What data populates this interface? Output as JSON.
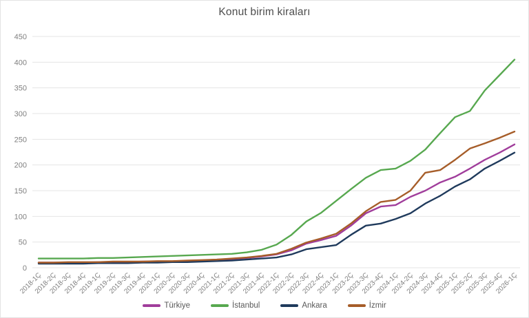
{
  "chart_data": {
    "type": "line",
    "title": "Konut birim kiraları",
    "xlabel": "",
    "ylabel": "",
    "ylim": [
      0,
      450
    ],
    "yticks": [
      0,
      50,
      100,
      150,
      200,
      250,
      300,
      350,
      400,
      450
    ],
    "grid": "horizontal",
    "legend_position": "bottom",
    "categories": [
      "2018-1Ç",
      "2018-2Ç",
      "2018-3Ç",
      "2018-4Ç",
      "2019-1Ç",
      "2019-2Ç",
      "2019-3Ç",
      "2019-4Ç",
      "2020-1Ç",
      "2020-2Ç",
      "2020-3Ç",
      "2020-4Ç",
      "2021-1Ç",
      "2021-2Ç",
      "2021-3Ç",
      "2021-4Ç",
      "2022-1Ç",
      "2022-2Ç",
      "2022-3Ç",
      "2022-4Ç",
      "2023-1Ç",
      "2023-2Ç",
      "2023-3Ç",
      "2023-4Ç",
      "2024-1Ç",
      "2024-2Ç",
      "2024-3Ç",
      "2024-4Ç",
      "2025-1Ç",
      "2025-2Ç",
      "2025-3Ç",
      "2025-4Ç",
      "2026-1Ç"
    ],
    "series": [
      {
        "name": "Türkiye",
        "color": "#A03D9B",
        "values": [
          10,
          10,
          10,
          10,
          11,
          11,
          11,
          12,
          12,
          12,
          13,
          14,
          16,
          17,
          19,
          22,
          26,
          34,
          47,
          54,
          62,
          82,
          106,
          119,
          122,
          138,
          150,
          166,
          177,
          193,
          210,
          224,
          240
        ]
      },
      {
        "name": "İstanbul",
        "color": "#57A84F",
        "values": [
          18,
          18,
          18,
          18,
          19,
          19,
          20,
          21,
          22,
          23,
          24,
          25,
          26,
          27,
          30,
          35,
          45,
          64,
          90,
          107,
          130,
          153,
          175,
          190,
          193,
          208,
          230,
          262,
          293,
          305,
          345,
          375,
          405
        ]
      },
      {
        "name": "Ankara",
        "color": "#1F3A5C",
        "values": [
          8,
          8,
          8,
          8,
          9,
          9,
          9,
          10,
          10,
          11,
          11,
          12,
          13,
          14,
          16,
          18,
          20,
          26,
          36,
          40,
          44,
          64,
          82,
          86,
          95,
          106,
          125,
          140,
          158,
          172,
          193,
          208,
          224
        ]
      },
      {
        "name": "İzmir",
        "color": "#A65D29",
        "values": [
          10,
          10,
          11,
          11,
          11,
          12,
          12,
          12,
          13,
          13,
          14,
          15,
          16,
          18,
          20,
          23,
          27,
          37,
          49,
          57,
          66,
          86,
          110,
          128,
          132,
          150,
          185,
          190,
          210,
          232,
          242,
          253,
          265
        ]
      }
    ],
    "style": {
      "grid_color": "#e4e4e4",
      "tick_label_color": "#7f7f7f",
      "title_color": "#4d4d4d",
      "legend_text_color": "#595959"
    }
  }
}
